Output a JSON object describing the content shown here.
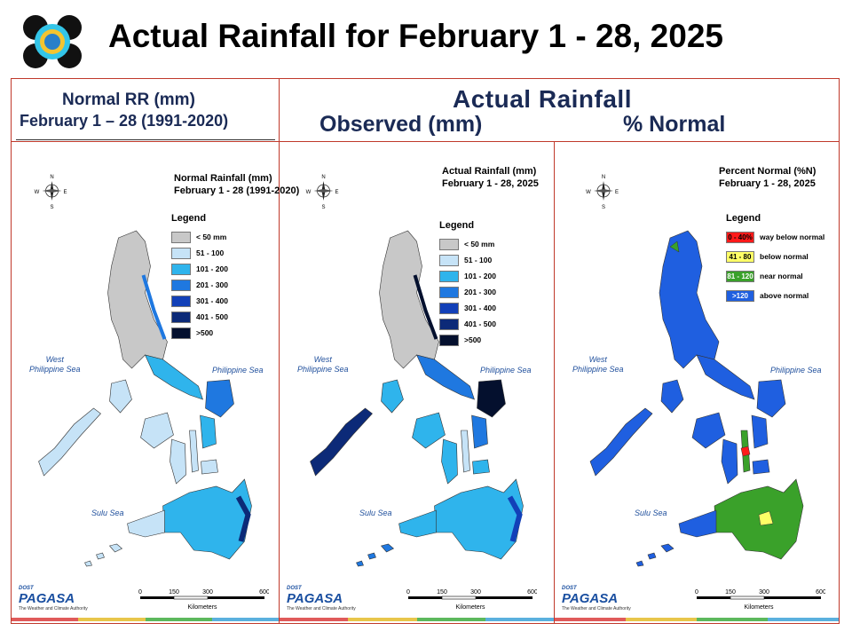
{
  "title": "Actual Rainfall for February 1 - 28, 2025",
  "headers": {
    "normal_line1": "Normal RR (mm)",
    "normal_line2": "February 1 – 28 (1991-2020)",
    "actual": "Actual Rainfall",
    "observed": "Observed (mm)",
    "percent": "% Normal"
  },
  "panels": [
    {
      "title_line1": "Normal Rainfall (mm)",
      "title_line2": "February 1 - 28 (1991-2020)",
      "legend_title": "Legend",
      "legend": [
        {
          "label": "< 50 mm",
          "color": "#c8c8c8"
        },
        {
          "label": "51 - 100",
          "color": "#c6e3f7"
        },
        {
          "label": "101 - 200",
          "color": "#2fb4ec"
        },
        {
          "label": "201 - 300",
          "color": "#1f78e0"
        },
        {
          "label": "301 - 400",
          "color": "#1240b8"
        },
        {
          "label": "401 - 500",
          "color": "#0c2a78"
        },
        {
          "label": ">500",
          "color": "#04102e"
        }
      ],
      "seas": {
        "west": "West\nPhilippine Sea",
        "east": "Philippine Sea",
        "sulu": "Sulu Sea"
      }
    },
    {
      "title_line1": "Actual Rainfall (mm)",
      "title_line2": "February 1 - 28, 2025",
      "legend_title": "Legend",
      "legend": [
        {
          "label": "< 50 mm",
          "color": "#c8c8c8"
        },
        {
          "label": "51 - 100",
          "color": "#c6e3f7"
        },
        {
          "label": "101 - 200",
          "color": "#2fb4ec"
        },
        {
          "label": "201 - 300",
          "color": "#1f78e0"
        },
        {
          "label": "301 - 400",
          "color": "#1240b8"
        },
        {
          "label": "401 - 500",
          "color": "#0c2a78"
        },
        {
          "label": ">500",
          "color": "#04102e"
        }
      ],
      "seas": {
        "west": "West\nPhilippine Sea",
        "east": "Philippine Sea",
        "sulu": "Sulu Sea"
      }
    },
    {
      "title_line1": "Percent Normal (%N)",
      "title_line2": "February 1 - 28, 2025",
      "legend_title": "Legend",
      "legend": [
        {
          "range": "0 - 40%",
          "label": "way below normal",
          "color": "#ff1a1a"
        },
        {
          "range": "41 - 80",
          "label": "below normal",
          "color": "#ffff66"
        },
        {
          "range": "81 - 120",
          "label": "near normal",
          "color": "#3aa12a"
        },
        {
          "range": ">120",
          "label": "above normal",
          "color": "#1f5fe0"
        }
      ],
      "seas": {
        "west": "West\nPhilippine Sea",
        "east": "Philippine Sea",
        "sulu": "Sulu Sea"
      }
    }
  ],
  "compass": {
    "n": "N",
    "s": "S",
    "e": "E",
    "w": "W"
  },
  "scale": {
    "ticks": [
      "0",
      "150",
      "300",
      "600"
    ],
    "unit": "Kilometers"
  },
  "footer_logo": {
    "name": "PAGASA",
    "tagline": "The Weather and Climate Authority",
    "prefix": "DOST"
  },
  "footer_colors": [
    "#e05a5a",
    "#e8c64a",
    "#5cb85c",
    "#5ab0de"
  ]
}
